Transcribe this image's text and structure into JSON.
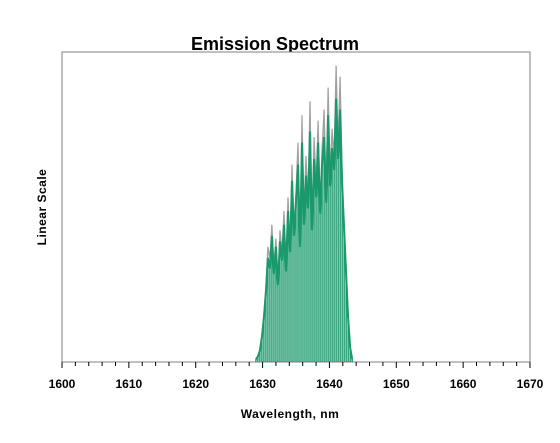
{
  "chart_data": {
    "type": "line",
    "title": "Emission Spectrum",
    "xlabel": "Wavelength, nm",
    "ylabel": "Linear Scale",
    "xlim": [
      1600,
      1670
    ],
    "ylim": [
      0,
      1.0
    ],
    "x_ticks": [
      "1600",
      "1610",
      "1620",
      "1630",
      "1640",
      "1650",
      "1660",
      "1670"
    ],
    "grid": false,
    "legend": "none",
    "colors": {
      "primary": "#1a9a6c",
      "secondary": "#a0a0a0",
      "frame": "#808080"
    },
    "series": [
      {
        "color": "#a0a0a0",
        "x": [
          1629.0,
          1629.3,
          1629.6,
          1629.9,
          1630.2,
          1630.5,
          1630.8,
          1631.1,
          1631.4,
          1631.7,
          1632.0,
          1632.3,
          1632.6,
          1632.9,
          1633.2,
          1633.5,
          1633.8,
          1634.1,
          1634.4,
          1634.7,
          1635.0,
          1635.3,
          1635.6,
          1635.9,
          1636.2,
          1636.5,
          1636.8,
          1637.1,
          1637.4,
          1637.7,
          1638.0,
          1638.3,
          1638.6,
          1638.9,
          1639.2,
          1639.5,
          1639.8,
          1640.1,
          1640.4,
          1640.7,
          1641.0,
          1641.3,
          1641.6,
          1641.9,
          1642.2,
          1642.5,
          1642.8,
          1643.1,
          1643.4
        ],
        "values": [
          0.01,
          0.02,
          0.05,
          0.1,
          0.18,
          0.28,
          0.42,
          0.38,
          0.5,
          0.35,
          0.45,
          0.3,
          0.48,
          0.4,
          0.55,
          0.36,
          0.6,
          0.42,
          0.72,
          0.5,
          0.62,
          0.8,
          0.45,
          0.9,
          0.55,
          0.75,
          0.6,
          0.95,
          0.52,
          0.82,
          0.65,
          0.88,
          0.58,
          0.78,
          0.92,
          0.62,
          1.0,
          0.7,
          0.85,
          0.75,
          1.08,
          0.8,
          1.04,
          0.7,
          0.52,
          0.35,
          0.18,
          0.06,
          0.01
        ]
      },
      {
        "color": "#1a9a6c",
        "x": [
          1629.0,
          1629.3,
          1629.6,
          1629.9,
          1630.2,
          1630.5,
          1630.8,
          1631.1,
          1631.4,
          1631.7,
          1632.0,
          1632.3,
          1632.6,
          1632.9,
          1633.2,
          1633.5,
          1633.8,
          1634.1,
          1634.4,
          1634.7,
          1635.0,
          1635.3,
          1635.6,
          1635.9,
          1636.2,
          1636.5,
          1636.8,
          1637.1,
          1637.4,
          1637.7,
          1638.0,
          1638.3,
          1638.6,
          1638.9,
          1639.2,
          1639.5,
          1639.8,
          1640.1,
          1640.4,
          1640.7,
          1641.0,
          1641.3,
          1641.6,
          1641.9,
          1642.2,
          1642.5,
          1642.8,
          1643.1,
          1643.4
        ],
        "values": [
          0.01,
          0.02,
          0.04,
          0.09,
          0.16,
          0.25,
          0.38,
          0.34,
          0.46,
          0.32,
          0.42,
          0.28,
          0.44,
          0.37,
          0.5,
          0.33,
          0.55,
          0.4,
          0.66,
          0.46,
          0.58,
          0.72,
          0.42,
          0.8,
          0.5,
          0.68,
          0.56,
          0.84,
          0.48,
          0.74,
          0.6,
          0.8,
          0.54,
          0.72,
          0.82,
          0.58,
          0.9,
          0.64,
          0.78,
          0.7,
          0.96,
          0.74,
          0.92,
          0.64,
          0.48,
          0.32,
          0.16,
          0.05,
          0.01
        ]
      }
    ]
  }
}
